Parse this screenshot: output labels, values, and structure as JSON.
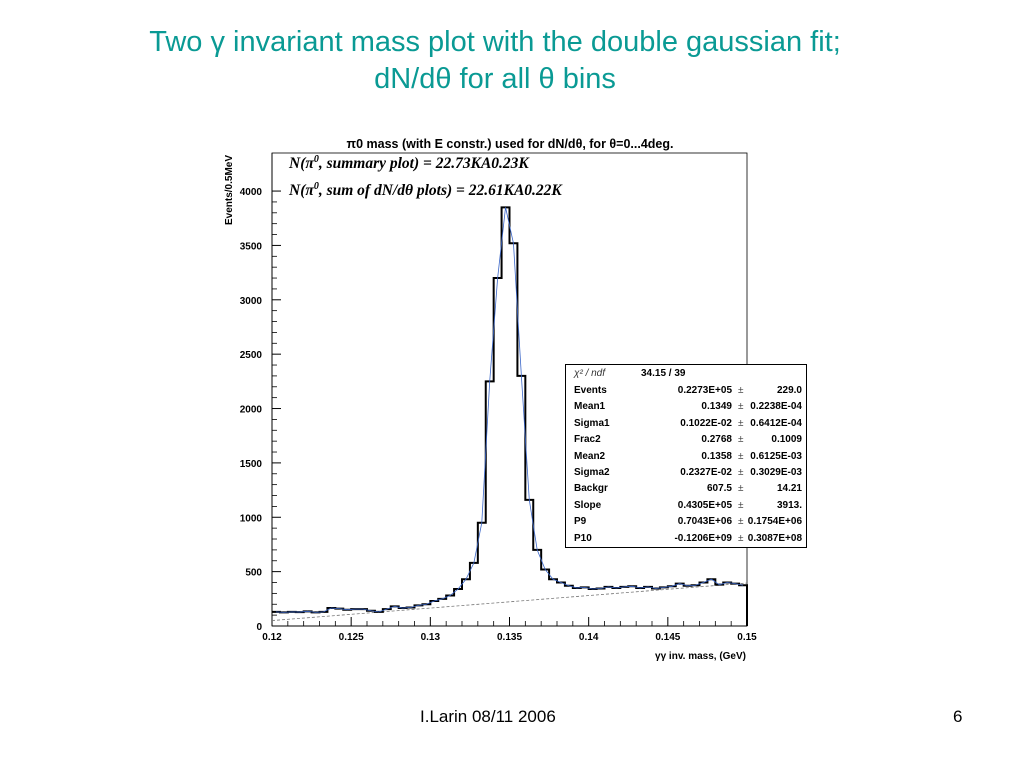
{
  "slide": {
    "title_line1": "Two γ invariant mass plot with the double gaussian fit;",
    "title_line2": "dN/dθ for all θ bins",
    "footer_author_date": "I.Larin 08/11 2006",
    "page_number": "6",
    "title_color": "#0a9a94"
  },
  "chart_data": {
    "type": "line",
    "title": "π0 mass (with E constr.) used for dN/dθ, for θ=0...4deg.",
    "xlabel": "γγ inv. mass, (GeV)",
    "ylabel": "Events/0.5MeV",
    "xlim": [
      0.12,
      0.15
    ],
    "ylim": [
      0,
      4350
    ],
    "x_ticks": [
      "0.12",
      "0.125",
      "0.13",
      "0.135",
      "0.14",
      "0.145",
      "0.15"
    ],
    "x_tick_values": [
      0.12,
      0.125,
      0.13,
      0.135,
      0.14,
      0.145,
      0.15
    ],
    "y_ticks": [
      "0",
      "500",
      "1000",
      "1500",
      "2000",
      "2500",
      "3000",
      "3500",
      "4000"
    ],
    "y_tick_values": [
      0,
      500,
      1000,
      1500,
      2000,
      2500,
      3000,
      3500,
      4000
    ],
    "bin_width": 0.0005,
    "histogram_counts": [
      130,
      125,
      130,
      128,
      135,
      125,
      130,
      165,
      160,
      150,
      155,
      155,
      140,
      130,
      155,
      180,
      165,
      170,
      190,
      200,
      230,
      250,
      280,
      340,
      430,
      580,
      950,
      2250,
      3200,
      3850,
      3520,
      2300,
      1160,
      700,
      520,
      430,
      400,
      370,
      350,
      355,
      340,
      345,
      360,
      350,
      360,
      365,
      350,
      360,
      345,
      355,
      365,
      390,
      370,
      375,
      400,
      430,
      380,
      400,
      390,
      375
    ],
    "background_line": {
      "x": [
        0.12,
        0.15
      ],
      "y": [
        50,
        395
      ]
    },
    "annotations": [
      "N(π0, summary plot) = 22.73KA0.23K",
      "N(π0, sum of dN/dθ plots) = 22.61KA0.22K"
    ],
    "fit_stats": {
      "chi2_label": "χ² / ndf",
      "chi2_value": "34.15    /    39",
      "params": [
        {
          "name": "Events",
          "value": "0.2273E+05",
          "pm": "±",
          "error": "229.0"
        },
        {
          "name": "Mean1",
          "value": "0.1349",
          "pm": "±",
          "error": "0.2238E-04"
        },
        {
          "name": "Sigma1",
          "value": "0.1022E-02",
          "pm": "±",
          "error": "0.6412E-04"
        },
        {
          "name": "Frac2",
          "value": "0.2768",
          "pm": "±",
          "error": "0.1009"
        },
        {
          "name": "Mean2",
          "value": "0.1358",
          "pm": "±",
          "error": "0.6125E-03"
        },
        {
          "name": "Sigma2",
          "value": "0.2327E-02",
          "pm": "±",
          "error": "0.3029E-03"
        },
        {
          "name": "Backgr",
          "value": "607.5",
          "pm": "±",
          "error": "14.21"
        },
        {
          "name": "Slope",
          "value": "0.4305E+05",
          "pm": "±",
          "error": "3913."
        },
        {
          "name": "P9",
          "value": "0.7043E+06",
          "pm": "±",
          "error": "0.1754E+06"
        },
        {
          "name": "P10",
          "value": "-0.1206E+09",
          "pm": "±",
          "error": "0.3087E+08"
        }
      ]
    },
    "grid": false,
    "legend": "none"
  }
}
